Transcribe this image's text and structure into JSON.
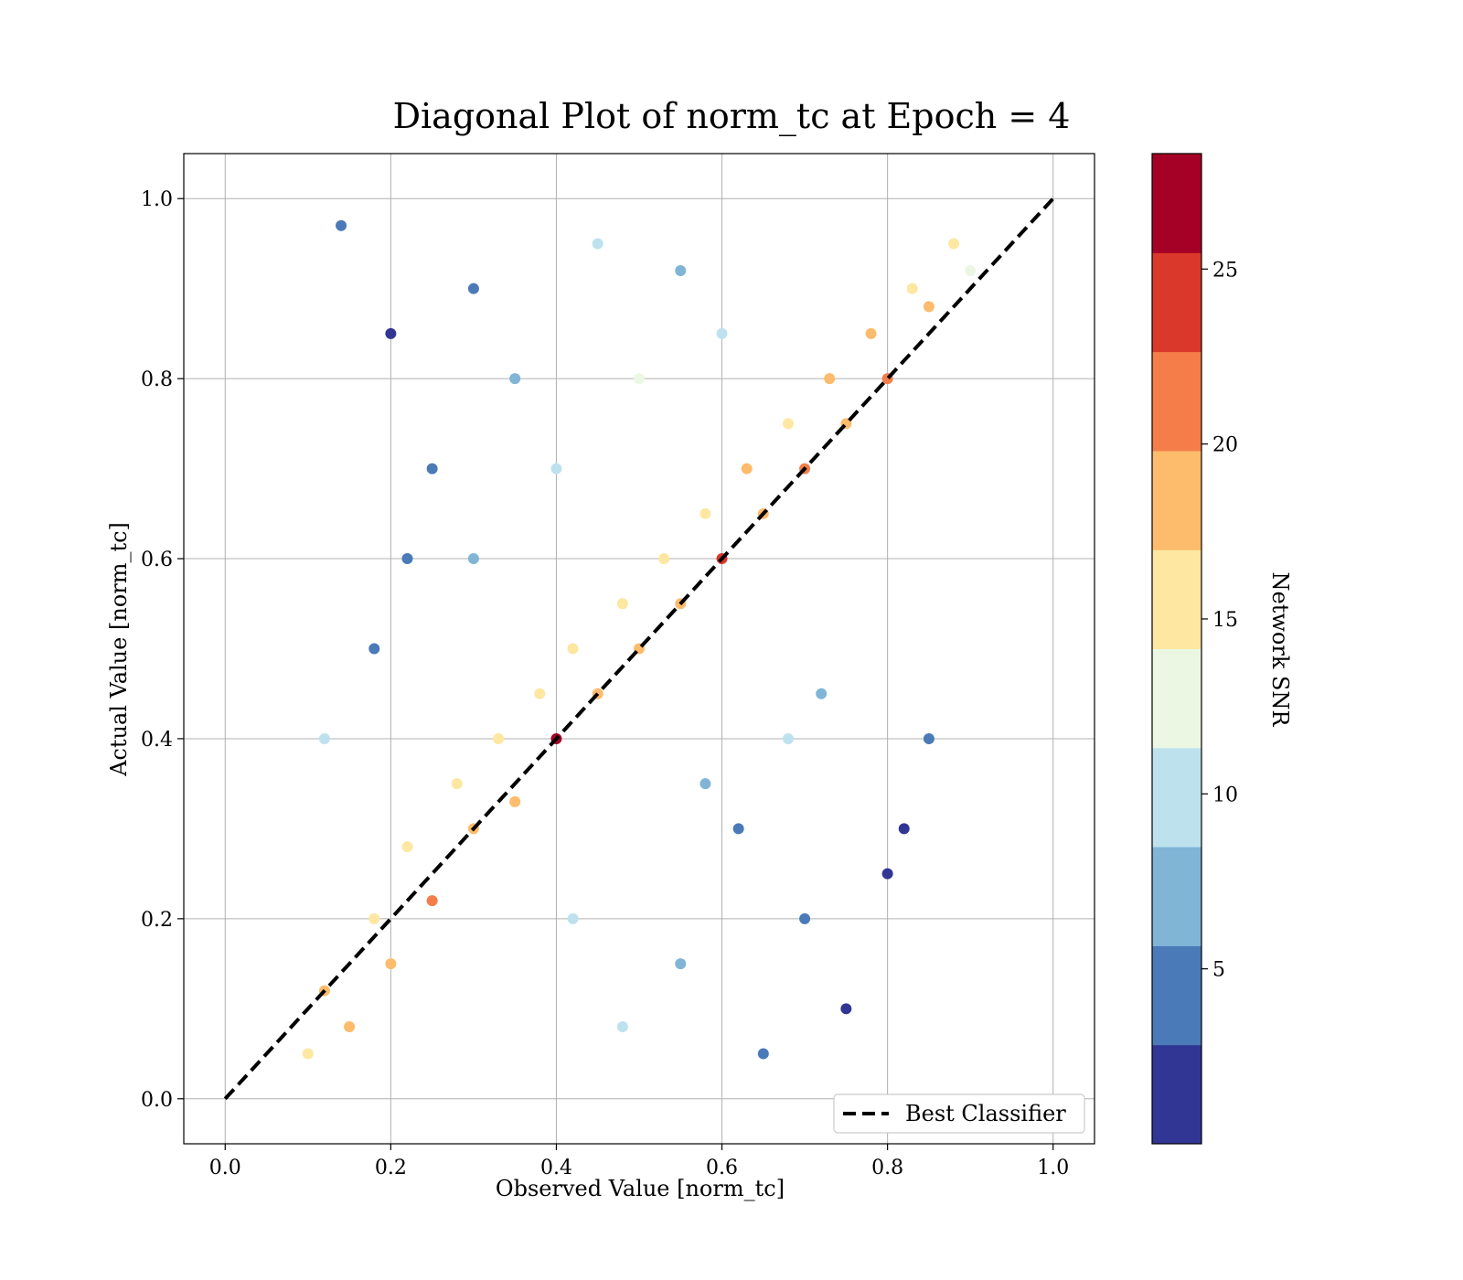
{
  "chart_data": {
    "type": "scatter",
    "title": "Diagonal Plot of norm_tc at Epoch = 4",
    "xlabel": "Observed Value [norm_tc]",
    "ylabel": "Actual Value [norm_tc]",
    "xlim": [
      -0.05,
      1.05
    ],
    "ylim": [
      -0.05,
      1.05
    ],
    "xticks": [
      "0.0",
      "0.2",
      "0.4",
      "0.6",
      "0.8",
      "1.0"
    ],
    "yticks": [
      "0.0",
      "0.2",
      "0.4",
      "0.6",
      "0.8",
      "1.0"
    ],
    "grid": true,
    "legend": {
      "placement": "lower-right",
      "entries": [
        "Best Classifier"
      ]
    },
    "reference_line": {
      "name": "Best Classifier",
      "style": "dashed",
      "color": "#000000",
      "x": [
        0.0,
        1.0
      ],
      "y": [
        0.0,
        1.0
      ]
    },
    "colorbar": {
      "label": "Network SNR",
      "range": [
        0,
        28.3
      ],
      "ticks": [
        "5",
        "10",
        "15",
        "20",
        "25"
      ],
      "boundaries": [
        0,
        2.83,
        5.66,
        8.49,
        11.32,
        14.15,
        16.98,
        19.81,
        22.64,
        25.47,
        28.3
      ],
      "colors": [
        "#313695",
        "#4a7ab7",
        "#80b5d6",
        "#bde2ee",
        "#ecf7e3",
        "#fde7a1",
        "#fdbb6c",
        "#f47d4a",
        "#da382a",
        "#a50026"
      ]
    },
    "points": [
      [
        0.1,
        0.05,
        16
      ],
      [
        0.12,
        0.12,
        17
      ],
      [
        0.15,
        0.08,
        19
      ],
      [
        0.18,
        0.2,
        15
      ],
      [
        0.2,
        0.15,
        18
      ],
      [
        0.22,
        0.28,
        16
      ],
      [
        0.25,
        0.22,
        20
      ],
      [
        0.28,
        0.35,
        15
      ],
      [
        0.3,
        0.3,
        17
      ],
      [
        0.33,
        0.4,
        16
      ],
      [
        0.35,
        0.33,
        19
      ],
      [
        0.38,
        0.45,
        15
      ],
      [
        0.4,
        0.4,
        26
      ],
      [
        0.42,
        0.5,
        16
      ],
      [
        0.45,
        0.45,
        18
      ],
      [
        0.48,
        0.55,
        15
      ],
      [
        0.5,
        0.5,
        17
      ],
      [
        0.53,
        0.6,
        16
      ],
      [
        0.55,
        0.55,
        19
      ],
      [
        0.58,
        0.65,
        15
      ],
      [
        0.6,
        0.6,
        24
      ],
      [
        0.63,
        0.7,
        17
      ],
      [
        0.65,
        0.65,
        18
      ],
      [
        0.68,
        0.75,
        16
      ],
      [
        0.7,
        0.7,
        20
      ],
      [
        0.73,
        0.8,
        17
      ],
      [
        0.75,
        0.75,
        19
      ],
      [
        0.78,
        0.85,
        18
      ],
      [
        0.8,
        0.8,
        21
      ],
      [
        0.83,
        0.9,
        16
      ],
      [
        0.85,
        0.88,
        17
      ],
      [
        0.88,
        0.95,
        15
      ],
      [
        0.9,
        0.92,
        14
      ],
      [
        0.14,
        0.97,
        3
      ],
      [
        0.2,
        0.85,
        2
      ],
      [
        0.25,
        0.7,
        4
      ],
      [
        0.3,
        0.9,
        5
      ],
      [
        0.35,
        0.8,
        7
      ],
      [
        0.45,
        0.95,
        9
      ],
      [
        0.55,
        0.92,
        8
      ],
      [
        0.6,
        0.85,
        10
      ],
      [
        0.4,
        0.7,
        11
      ],
      [
        0.3,
        0.6,
        6
      ],
      [
        0.5,
        0.8,
        12
      ],
      [
        0.62,
        0.3,
        4
      ],
      [
        0.7,
        0.2,
        3
      ],
      [
        0.75,
        0.1,
        2
      ],
      [
        0.8,
        0.25,
        1
      ],
      [
        0.65,
        0.05,
        5
      ],
      [
        0.55,
        0.15,
        7
      ],
      [
        0.48,
        0.08,
        9
      ],
      [
        0.42,
        0.2,
        10
      ],
      [
        0.58,
        0.35,
        8
      ],
      [
        0.85,
        0.4,
        3
      ],
      [
        0.82,
        0.3,
        2
      ],
      [
        0.72,
        0.45,
        6
      ],
      [
        0.68,
        0.4,
        9
      ],
      [
        0.18,
        0.5,
        4
      ],
      [
        0.12,
        0.4,
        11
      ],
      [
        0.22,
        0.6,
        5
      ]
    ]
  }
}
